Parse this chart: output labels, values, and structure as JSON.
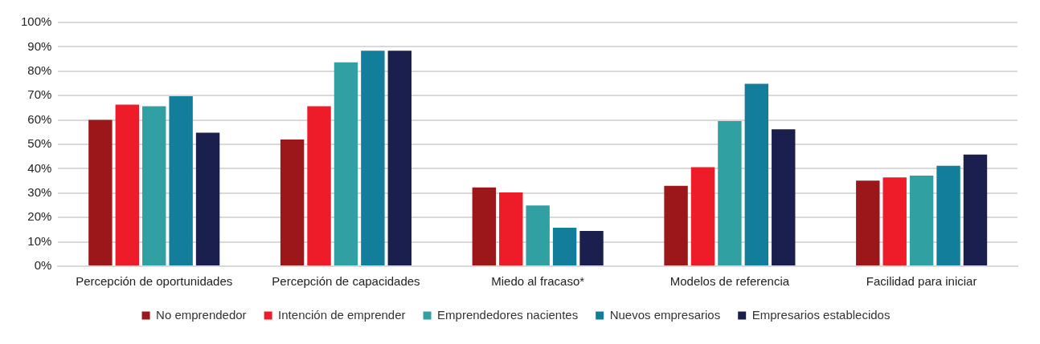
{
  "chart_data": {
    "type": "bar",
    "categories": [
      "Percepción de oportunidades",
      "Percepción de capacidades",
      "Miedo al fracaso*",
      "Modelos de referencia",
      "Facilidad para iniciar"
    ],
    "series": [
      {
        "name": "No emprendedor",
        "color": "#9b1719",
        "values": [
          60,
          52,
          32.3,
          33,
          35.1
        ]
      },
      {
        "name": "Intención de emprender",
        "color": "#ed1c28",
        "values": [
          66.3,
          65.6,
          30.3,
          40.6,
          36.4
        ]
      },
      {
        "name": "Emprendedores nacientes",
        "color": "#31a0a2",
        "values": [
          65.6,
          83.6,
          24.9,
          59.5,
          37.2
        ]
      },
      {
        "name": "Nuevos empresarios",
        "color": "#137e9c",
        "values": [
          69.7,
          88.4,
          15.8,
          74.8,
          41.2
        ]
      },
      {
        "name": "Empresarios establecidos",
        "color": "#1a1f4d",
        "values": [
          54.8,
          88.4,
          14.5,
          56.2,
          45.8
        ]
      }
    ],
    "ylim": [
      0,
      100
    ],
    "yticks": [
      {
        "value": 0,
        "label": "0%"
      },
      {
        "value": 10,
        "label": "10%"
      },
      {
        "value": 20,
        "label": "20%"
      },
      {
        "value": 30,
        "label": "30%"
      },
      {
        "value": 40,
        "label": "40%"
      },
      {
        "value": 50,
        "label": "50%"
      },
      {
        "value": 60,
        "label": "60%"
      },
      {
        "value": 70,
        "label": "70%"
      },
      {
        "value": 80,
        "label": "80%"
      },
      {
        "value": 90,
        "label": "90%"
      },
      {
        "value": 100,
        "label": "100%"
      }
    ],
    "grid": "y",
    "legend": "bottom"
  }
}
